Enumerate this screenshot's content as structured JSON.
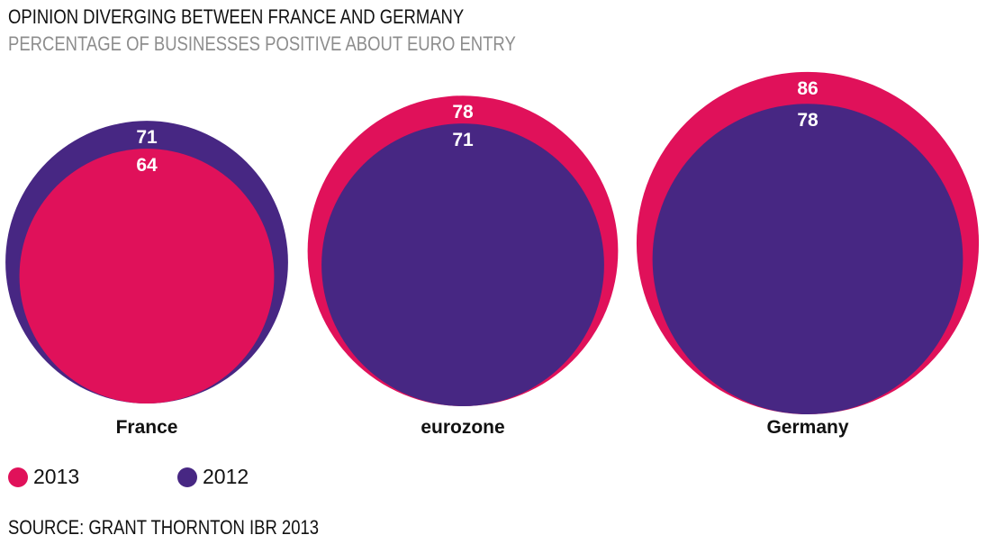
{
  "chart_data": {
    "type": "bubble",
    "title": "OPINION DIVERGING BETWEEN FRANCE AND GERMANY",
    "subtitle": "PERCENTAGE OF BUSINESSES POSITIVE ABOUT EURO ENTRY",
    "categories": [
      "France",
      "eurozone",
      "Germany"
    ],
    "series": [
      {
        "name": "2013",
        "color": "#e0115a",
        "values": [
          64,
          78,
          86
        ]
      },
      {
        "name": "2012",
        "color": "#472783",
        "values": [
          71,
          71,
          78
        ]
      }
    ],
    "legend_position": "bottom-left",
    "source": "SOURCE: GRANT THORNTON IBR 2013"
  }
}
